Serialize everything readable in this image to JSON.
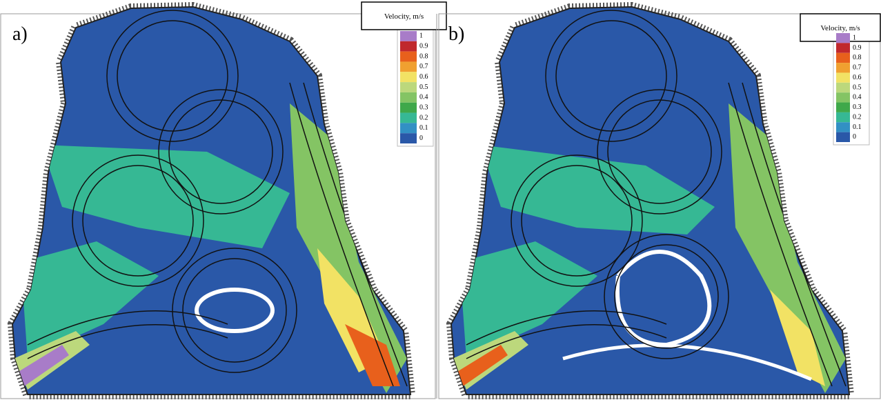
{
  "panels": [
    {
      "label": "a)",
      "legend": {
        "title": "Velocity, m/s",
        "items": [
          {
            "label": "1",
            "color": "#a87cc8"
          },
          {
            "label": "0.9",
            "color": "#c0282d"
          },
          {
            "label": "0.8",
            "color": "#e8601c"
          },
          {
            "label": "0.7",
            "color": "#f0a030"
          },
          {
            "label": "0.6",
            "color": "#f2e264"
          },
          {
            "label": "0.5",
            "color": "#bcd87c"
          },
          {
            "label": "0.4",
            "color": "#84c464"
          },
          {
            "label": "0.3",
            "color": "#3fa84a"
          },
          {
            "label": "0.2",
            "color": "#36b894"
          },
          {
            "label": "0.1",
            "color": "#3290c4"
          },
          {
            "label": "0",
            "color": "#2a58a8"
          }
        ]
      }
    },
    {
      "label": "b)",
      "legend": {
        "title": "Velocity, m/s",
        "items": [
          {
            "label": "1",
            "color": "#a87cc8"
          },
          {
            "label": "0.9",
            "color": "#c0282d"
          },
          {
            "label": "0.8",
            "color": "#e8601c"
          },
          {
            "label": "0.7",
            "color": "#f0a030"
          },
          {
            "label": "0.6",
            "color": "#f2e264"
          },
          {
            "label": "0.5",
            "color": "#bcd87c"
          },
          {
            "label": "0.4",
            "color": "#84c464"
          },
          {
            "label": "0.3",
            "color": "#3fa84a"
          },
          {
            "label": "0.2",
            "color": "#36b894"
          },
          {
            "label": "0.1",
            "color": "#3290c4"
          },
          {
            "label": "0",
            "color": "#2a58a8"
          }
        ]
      }
    }
  ]
}
